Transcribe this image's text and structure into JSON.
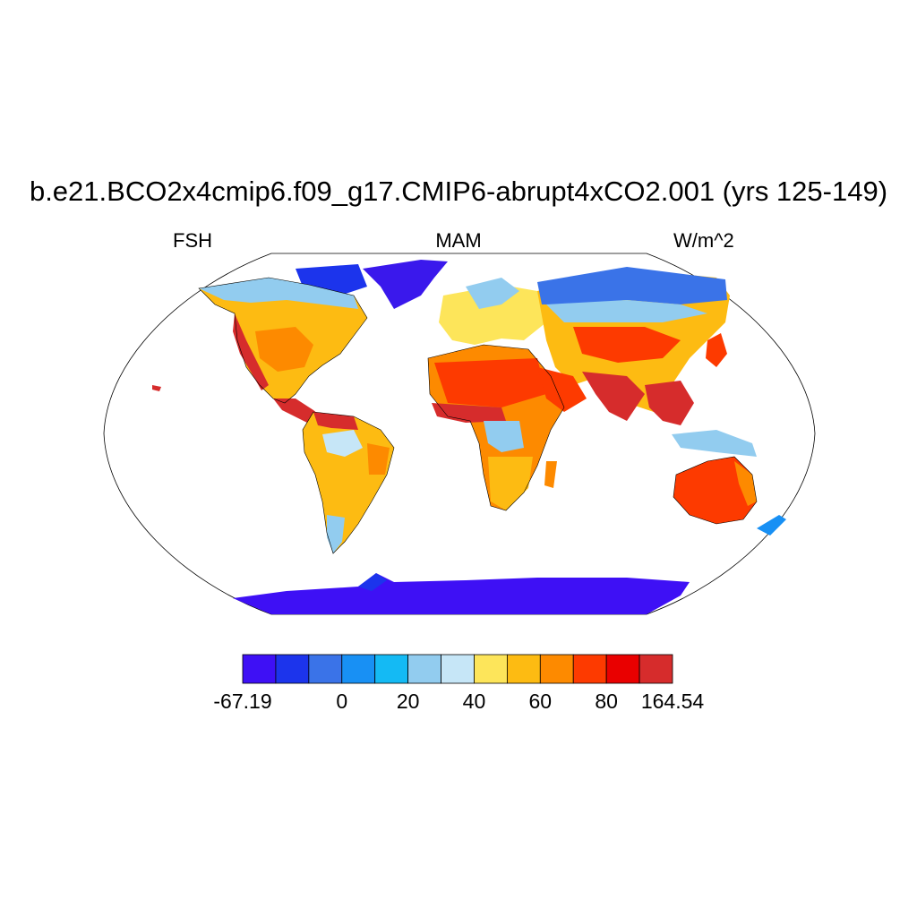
{
  "title": "b.e21.BCO2x4cmip6.f09_g17.CMIP6-abrupt4xCO2.001 (yrs 125-149)",
  "left_string": "FSH",
  "center_string": "MAM",
  "right_string": "W/m^2",
  "colorbar": {
    "colors": [
      "#3e10f5",
      "#1c34ec",
      "#3a73e8",
      "#1890f4",
      "#14baf4",
      "#92ccef",
      "#c6e6f7",
      "#fde55a",
      "#fdbb12",
      "#fd8a00",
      "#fd3a00",
      "#e90000",
      "#d62c2c"
    ],
    "labels": [
      "-67.19",
      "0",
      "20",
      "40",
      "60",
      "80",
      "164.54"
    ],
    "range": [
      -67.19,
      164.54
    ]
  }
}
